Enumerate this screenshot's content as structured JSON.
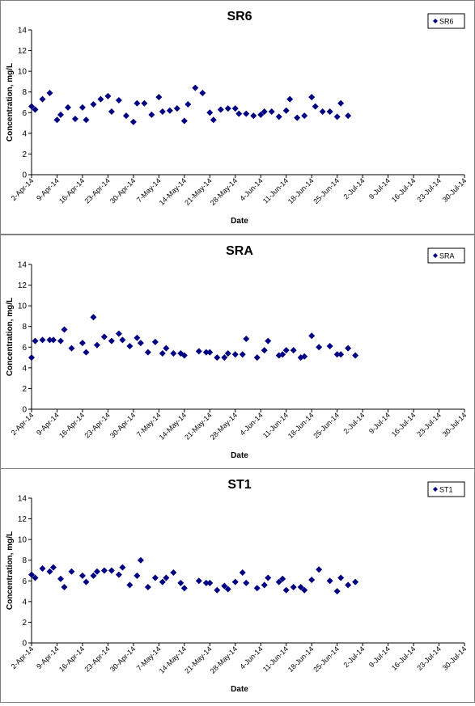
{
  "chart_data": [
    {
      "type": "scatter",
      "title": "SR6",
      "xlabel": "Date",
      "ylabel": "Concentration, mg/L",
      "ylim": [
        0,
        14
      ],
      "yticks": [
        0,
        2,
        4,
        6,
        8,
        10,
        12,
        14
      ],
      "xlim": [
        "2014-04-02",
        "2014-07-30"
      ],
      "xtick_labels": [
        "2-Apr-14",
        "9-Apr-14",
        "16-Apr-14",
        "23-Apr-14",
        "30-Apr-14",
        "7-May-14",
        "14-May-14",
        "21-May-14",
        "28-May-14",
        "4-Jun-14",
        "11-Jun-14",
        "18-Jun-14",
        "25-Jun-14",
        "2-Jul-14",
        "9-Jul-14",
        "16-Jul-14",
        "23-Jul-14",
        "30-Jul-14"
      ],
      "grid": false,
      "legend_position": "top-right",
      "series": [
        {
          "name": "SR6",
          "color": "#000080",
          "marker": "diamond",
          "points": [
            [
              "2014-04-02",
              6.6
            ],
            [
              "2014-04-03",
              6.3
            ],
            [
              "2014-04-05",
              7.3
            ],
            [
              "2014-04-07",
              7.9
            ],
            [
              "2014-04-09",
              5.3
            ],
            [
              "2014-04-10",
              5.8
            ],
            [
              "2014-04-12",
              6.5
            ],
            [
              "2014-04-14",
              5.4
            ],
            [
              "2014-04-16",
              6.5
            ],
            [
              "2014-04-17",
              5.3
            ],
            [
              "2014-04-19",
              6.8
            ],
            [
              "2014-04-21",
              7.3
            ],
            [
              "2014-04-23",
              7.6
            ],
            [
              "2014-04-24",
              6.1
            ],
            [
              "2014-04-26",
              7.2
            ],
            [
              "2014-04-28",
              5.7
            ],
            [
              "2014-04-30",
              5.1
            ],
            [
              "2014-05-01",
              6.9
            ],
            [
              "2014-05-03",
              6.9
            ],
            [
              "2014-05-05",
              5.8
            ],
            [
              "2014-05-07",
              7.5
            ],
            [
              "2014-05-08",
              6.1
            ],
            [
              "2014-05-10",
              6.2
            ],
            [
              "2014-05-12",
              6.4
            ],
            [
              "2014-05-14",
              5.2
            ],
            [
              "2014-05-15",
              6.8
            ],
            [
              "2014-05-17",
              8.4
            ],
            [
              "2014-05-19",
              7.9
            ],
            [
              "2014-05-21",
              6.0
            ],
            [
              "2014-05-22",
              5.3
            ],
            [
              "2014-05-24",
              6.3
            ],
            [
              "2014-05-26",
              6.4
            ],
            [
              "2014-05-28",
              6.4
            ],
            [
              "2014-05-29",
              5.9
            ],
            [
              "2014-05-31",
              5.9
            ],
            [
              "2014-06-02",
              5.7
            ],
            [
              "2014-06-04",
              5.8
            ],
            [
              "2014-06-05",
              6.1
            ],
            [
              "2014-06-07",
              6.1
            ],
            [
              "2014-06-09",
              5.6
            ],
            [
              "2014-06-11",
              6.2
            ],
            [
              "2014-06-12",
              7.3
            ],
            [
              "2014-06-14",
              5.5
            ],
            [
              "2014-06-16",
              5.7
            ],
            [
              "2014-06-18",
              7.5
            ],
            [
              "2014-06-19",
              6.6
            ],
            [
              "2014-06-21",
              6.1
            ],
            [
              "2014-06-23",
              6.1
            ],
            [
              "2014-06-25",
              5.6
            ],
            [
              "2014-06-26",
              6.9
            ],
            [
              "2014-06-28",
              5.7
            ]
          ]
        }
      ]
    },
    {
      "type": "scatter",
      "title": "SRA",
      "xlabel": "Date",
      "ylabel": "Concentration, mg/L",
      "ylim": [
        0,
        14
      ],
      "yticks": [
        0,
        2,
        4,
        6,
        8,
        10,
        12,
        14
      ],
      "xlim": [
        "2014-04-02",
        "2014-07-30"
      ],
      "xtick_labels": [
        "2-Apr-14",
        "9-Apr-14",
        "16-Apr-14",
        "23-Apr-14",
        "30-Apr-14",
        "7-May-14",
        "14-May-14",
        "21-May-14",
        "28-May-14",
        "4-Jun-14",
        "11-Jun-14",
        "18-Jun-14",
        "25-Jun-14",
        "2-Jul-14",
        "9-Jul-14",
        "16-Jul-14",
        "23-Jul-14",
        "30-Jul-14"
      ],
      "grid": false,
      "legend_position": "top-right",
      "series": [
        {
          "name": "SRA",
          "color": "#000080",
          "marker": "diamond",
          "points": [
            [
              "2014-04-02",
              5.0
            ],
            [
              "2014-04-03",
              6.6
            ],
            [
              "2014-04-05",
              6.7
            ],
            [
              "2014-04-07",
              6.7
            ],
            [
              "2014-04-08",
              6.7
            ],
            [
              "2014-04-10",
              6.6
            ],
            [
              "2014-04-11",
              7.7
            ],
            [
              "2014-04-13",
              5.9
            ],
            [
              "2014-04-16",
              6.4
            ],
            [
              "2014-04-17",
              5.5
            ],
            [
              "2014-04-19",
              8.9
            ],
            [
              "2014-04-20",
              6.2
            ],
            [
              "2014-04-22",
              7.0
            ],
            [
              "2014-04-24",
              6.6
            ],
            [
              "2014-04-26",
              7.3
            ],
            [
              "2014-04-27",
              6.7
            ],
            [
              "2014-04-29",
              6.1
            ],
            [
              "2014-05-01",
              6.9
            ],
            [
              "2014-05-02",
              6.4
            ],
            [
              "2014-05-04",
              5.5
            ],
            [
              "2014-05-06",
              6.5
            ],
            [
              "2014-05-08",
              5.4
            ],
            [
              "2014-05-09",
              5.9
            ],
            [
              "2014-05-11",
              5.4
            ],
            [
              "2014-05-13",
              5.4
            ],
            [
              "2014-05-14",
              5.2
            ],
            [
              "2014-05-18",
              5.6
            ],
            [
              "2014-05-20",
              5.5
            ],
            [
              "2014-05-21",
              5.5
            ],
            [
              "2014-05-23",
              5.0
            ],
            [
              "2014-05-25",
              5.0
            ],
            [
              "2014-05-26",
              5.4
            ],
            [
              "2014-05-28",
              5.3
            ],
            [
              "2014-05-30",
              5.3
            ],
            [
              "2014-05-31",
              6.8
            ],
            [
              "2014-06-03",
              5.0
            ],
            [
              "2014-06-05",
              5.7
            ],
            [
              "2014-06-06",
              6.6
            ],
            [
              "2014-06-09",
              5.2
            ],
            [
              "2014-06-10",
              5.3
            ],
            [
              "2014-06-11",
              5.7
            ],
            [
              "2014-06-13",
              5.7
            ],
            [
              "2014-06-15",
              5.0
            ],
            [
              "2014-06-16",
              5.1
            ],
            [
              "2014-06-18",
              7.1
            ],
            [
              "2014-06-20",
              6.0
            ],
            [
              "2014-06-23",
              6.1
            ],
            [
              "2014-06-25",
              5.3
            ],
            [
              "2014-06-26",
              5.3
            ],
            [
              "2014-06-28",
              5.9
            ],
            [
              "2014-06-30",
              5.2
            ]
          ]
        }
      ]
    },
    {
      "type": "scatter",
      "title": "ST1",
      "xlabel": "Date",
      "ylabel": "Concentration, mg/L",
      "ylim": [
        0,
        14
      ],
      "yticks": [
        0,
        2,
        4,
        6,
        8,
        10,
        12,
        14
      ],
      "xlim": [
        "2014-04-02",
        "2014-07-30"
      ],
      "xtick_labels": [
        "2-Apr-14",
        "9-Apr-14",
        "16-Apr-14",
        "23-Apr-14",
        "30-Apr-14",
        "7-May-14",
        "14-May-14",
        "21-May-14",
        "28-May-14",
        "4-Jun-14",
        "11-Jun-14",
        "18-Jun-14",
        "25-Jun-14",
        "2-Jul-14",
        "9-Jul-14",
        "16-Jul-14",
        "23-Jul-14",
        "30-Jul-14"
      ],
      "grid": false,
      "legend_position": "top-right",
      "series": [
        {
          "name": "ST1",
          "color": "#000080",
          "marker": "diamond",
          "points": [
            [
              "2014-04-02",
              6.6
            ],
            [
              "2014-04-03",
              6.3
            ],
            [
              "2014-04-05",
              7.2
            ],
            [
              "2014-04-07",
              6.9
            ],
            [
              "2014-04-08",
              7.3
            ],
            [
              "2014-04-10",
              6.2
            ],
            [
              "2014-04-11",
              5.4
            ],
            [
              "2014-04-13",
              6.9
            ],
            [
              "2014-04-16",
              6.5
            ],
            [
              "2014-04-17",
              5.9
            ],
            [
              "2014-04-19",
              6.5
            ],
            [
              "2014-04-20",
              6.9
            ],
            [
              "2014-04-22",
              7.0
            ],
            [
              "2014-04-24",
              7.0
            ],
            [
              "2014-04-26",
              6.6
            ],
            [
              "2014-04-27",
              7.3
            ],
            [
              "2014-04-29",
              5.6
            ],
            [
              "2014-05-01",
              6.5
            ],
            [
              "2014-05-02",
              8.0
            ],
            [
              "2014-05-04",
              5.4
            ],
            [
              "2014-05-06",
              6.3
            ],
            [
              "2014-05-08",
              5.9
            ],
            [
              "2014-05-09",
              6.3
            ],
            [
              "2014-05-11",
              6.8
            ],
            [
              "2014-05-13",
              5.8
            ],
            [
              "2014-05-14",
              5.3
            ],
            [
              "2014-05-18",
              6.0
            ],
            [
              "2014-05-20",
              5.8
            ],
            [
              "2014-05-21",
              5.8
            ],
            [
              "2014-05-23",
              5.1
            ],
            [
              "2014-05-25",
              5.5
            ],
            [
              "2014-05-26",
              5.2
            ],
            [
              "2014-05-28",
              5.9
            ],
            [
              "2014-05-30",
              6.8
            ],
            [
              "2014-05-31",
              5.8
            ],
            [
              "2014-06-03",
              5.3
            ],
            [
              "2014-06-05",
              5.6
            ],
            [
              "2014-06-06",
              6.3
            ],
            [
              "2014-06-09",
              5.9
            ],
            [
              "2014-06-10",
              6.2
            ],
            [
              "2014-06-11",
              5.1
            ],
            [
              "2014-06-13",
              5.4
            ],
            [
              "2014-06-15",
              5.4
            ],
            [
              "2014-06-16",
              5.1
            ],
            [
              "2014-06-18",
              6.1
            ],
            [
              "2014-06-20",
              7.1
            ],
            [
              "2014-06-23",
              6.0
            ],
            [
              "2014-06-25",
              5.0
            ],
            [
              "2014-06-26",
              6.3
            ],
            [
              "2014-06-28",
              5.6
            ],
            [
              "2014-06-30",
              5.9
            ]
          ]
        }
      ]
    }
  ]
}
